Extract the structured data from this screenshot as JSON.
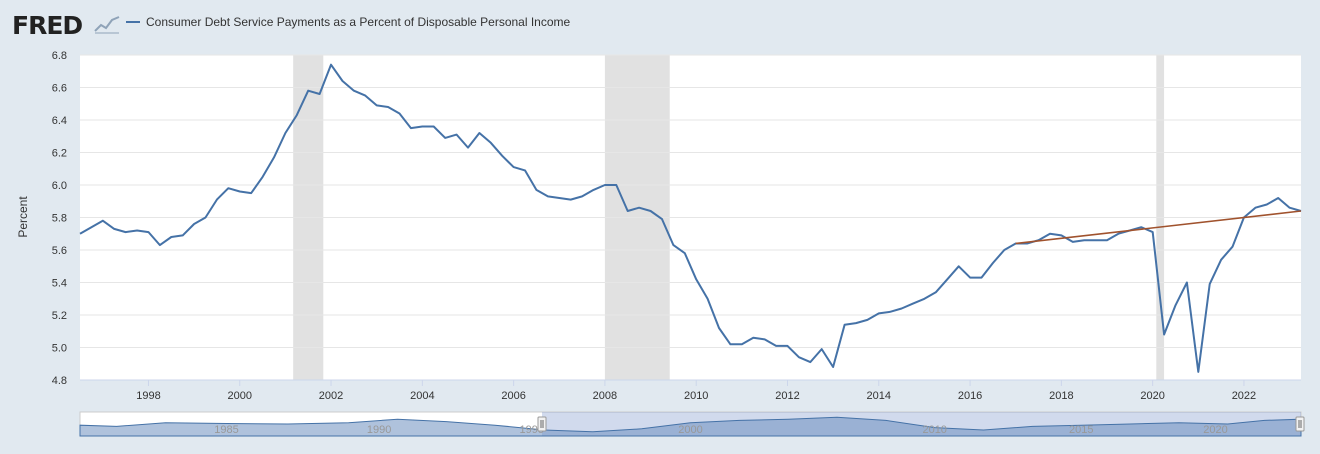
{
  "header": {
    "logo_text": "FRED",
    "legend_label": "Consumer Debt Service Payments as a Percent of Disposable Personal Income"
  },
  "colors": {
    "series": "#4572a7",
    "trend": "#a0522d",
    "recession": "#e1e1e1",
    "background": "#e1e9f0",
    "plot": "#ffffff",
    "grid": "#e6e6e6",
    "navigator_fill": "#6d8fc0"
  },
  "chart_data": {
    "type": "line",
    "title": "",
    "xlabel": "",
    "ylabel": "Percent",
    "xlim": [
      1996.5,
      2023.25
    ],
    "ylim": [
      4.8,
      6.8
    ],
    "yticks": [
      "4.8",
      "5.0",
      "5.2",
      "5.4",
      "5.6",
      "5.8",
      "6.0",
      "6.2",
      "6.4",
      "6.6",
      "6.8"
    ],
    "xticks": [
      "1998",
      "2000",
      "2002",
      "2004",
      "2006",
      "2008",
      "2010",
      "2012",
      "2014",
      "2016",
      "2018",
      "2020",
      "2022"
    ],
    "grid": "horizontal",
    "recessions": [
      [
        2001.17,
        2001.83
      ],
      [
        2008.0,
        2009.42
      ],
      [
        2020.08,
        2020.25
      ]
    ],
    "series": [
      {
        "name": "Consumer Debt Service Payments as a Percent of Disposable Personal Income",
        "x": [
          1996.5,
          1996.75,
          1997.0,
          1997.25,
          1997.5,
          1997.75,
          1998.0,
          1998.25,
          1998.5,
          1998.75,
          1999.0,
          1999.25,
          1999.5,
          1999.75,
          2000.0,
          2000.25,
          2000.5,
          2000.75,
          2001.0,
          2001.25,
          2001.5,
          2001.75,
          2002.0,
          2002.25,
          2002.5,
          2002.75,
          2003.0,
          2003.25,
          2003.5,
          2003.75,
          2004.0,
          2004.25,
          2004.5,
          2004.75,
          2005.0,
          2005.25,
          2005.5,
          2005.75,
          2006.0,
          2006.25,
          2006.5,
          2006.75,
          2007.0,
          2007.25,
          2007.5,
          2007.75,
          2008.0,
          2008.25,
          2008.5,
          2008.75,
          2009.0,
          2009.25,
          2009.5,
          2009.75,
          2010.0,
          2010.25,
          2010.5,
          2010.75,
          2011.0,
          2011.25,
          2011.5,
          2011.75,
          2012.0,
          2012.25,
          2012.5,
          2012.75,
          2013.0,
          2013.25,
          2013.5,
          2013.75,
          2014.0,
          2014.25,
          2014.5,
          2014.75,
          2015.0,
          2015.25,
          2015.5,
          2015.75,
          2016.0,
          2016.25,
          2016.5,
          2016.75,
          2017.0,
          2017.25,
          2017.5,
          2017.75,
          2018.0,
          2018.25,
          2018.5,
          2018.75,
          2019.0,
          2019.25,
          2019.5,
          2019.75,
          2020.0,
          2020.25,
          2020.5,
          2020.75,
          2021.0,
          2021.25,
          2021.5,
          2021.75,
          2022.0,
          2022.25,
          2022.5,
          2022.75,
          2023.0,
          2023.25
        ],
        "y": [
          5.7,
          5.74,
          5.78,
          5.73,
          5.71,
          5.72,
          5.71,
          5.63,
          5.68,
          5.69,
          5.76,
          5.8,
          5.91,
          5.98,
          5.96,
          5.95,
          6.05,
          6.17,
          6.32,
          6.43,
          6.58,
          6.56,
          6.74,
          6.64,
          6.58,
          6.55,
          6.49,
          6.48,
          6.44,
          6.35,
          6.36,
          6.36,
          6.29,
          6.31,
          6.23,
          6.32,
          6.26,
          6.18,
          6.11,
          6.09,
          5.97,
          5.93,
          5.92,
          5.91,
          5.93,
          5.97,
          6.0,
          6.0,
          5.84,
          5.86,
          5.84,
          5.79,
          5.63,
          5.58,
          5.42,
          5.3,
          5.12,
          5.02,
          5.02,
          5.06,
          5.05,
          5.01,
          5.01,
          4.94,
          4.91,
          4.99,
          4.88,
          5.14,
          5.15,
          5.17,
          5.21,
          5.22,
          5.24,
          5.27,
          5.3,
          5.34,
          5.42,
          5.5,
          5.43,
          5.43,
          5.52,
          5.6,
          5.64,
          5.64,
          5.66,
          5.7,
          5.69,
          5.65,
          5.66,
          5.66,
          5.66,
          5.7,
          5.72,
          5.74,
          5.71,
          5.08,
          5.26,
          5.4,
          4.85,
          5.39,
          5.54,
          5.62,
          5.8,
          5.86,
          5.88,
          5.92,
          5.86,
          5.84
        ]
      },
      {
        "name": "",
        "x": [
          2017.0,
          2023.25
        ],
        "y": [
          5.64,
          5.84
        ]
      }
    ],
    "navigator": {
      "x_labels": [
        "1985",
        "1990",
        "1995",
        "2000",
        "2010",
        "2015",
        "2020"
      ]
    }
  }
}
